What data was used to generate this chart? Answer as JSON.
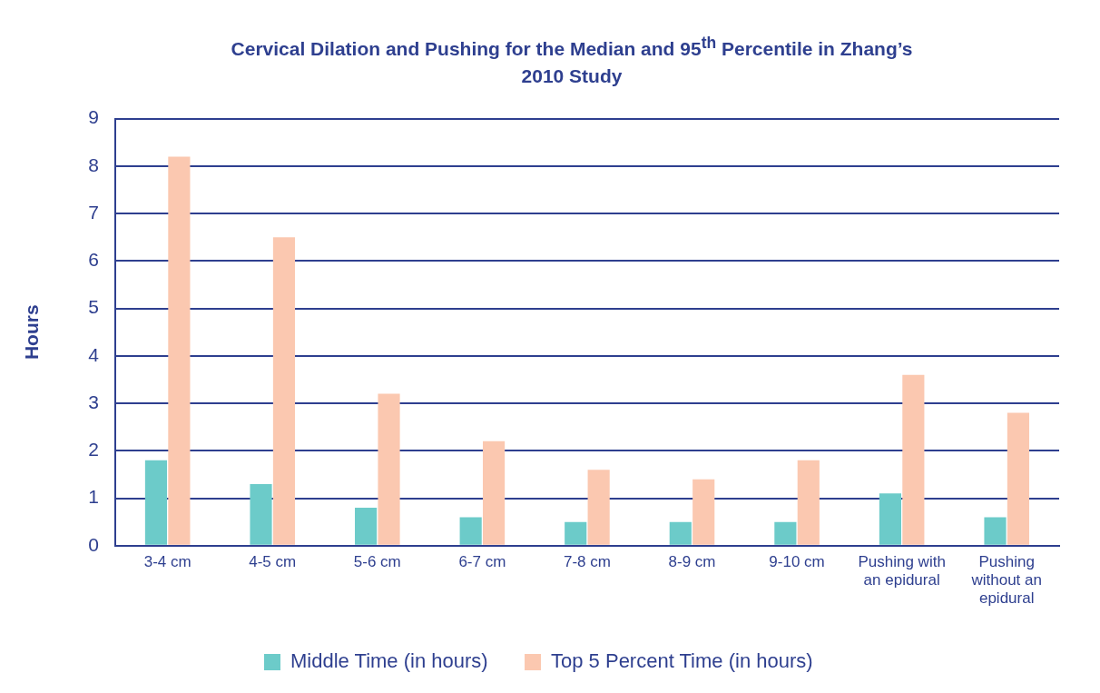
{
  "chart_data": {
    "type": "bar",
    "title": "Cervical Dilation and Pushing for the Median and 95$^{th}$ Percentile in Zhang’s 2010 Study",
    "ylabel": "Hours",
    "categories": [
      "3-4 cm",
      "4-5 cm",
      "5-6 cm",
      "6-7 cm",
      "7-8 cm",
      "8-9 cm",
      "9-10 cm",
      "Pushing with an epidural",
      "Pushing without an epidural"
    ],
    "series": [
      {
        "name": "Middle Time (in hours)",
        "color": "#6ccbc9",
        "values": [
          1.8,
          1.3,
          0.8,
          0.6,
          0.5,
          0.5,
          0.5,
          1.1,
          0.6
        ]
      },
      {
        "name": "Top 5 Percent Time (in hours)",
        "color": "#fbc8b0",
        "values": [
          8.2,
          6.5,
          3.2,
          2.2,
          1.6,
          1.4,
          1.8,
          3.6,
          2.8
        ]
      }
    ],
    "ylim": [
      0,
      9
    ],
    "yticks": [
      0,
      1,
      2,
      3,
      4,
      5,
      6,
      7,
      8,
      9
    ],
    "grid": "y",
    "legend": "bottom"
  }
}
